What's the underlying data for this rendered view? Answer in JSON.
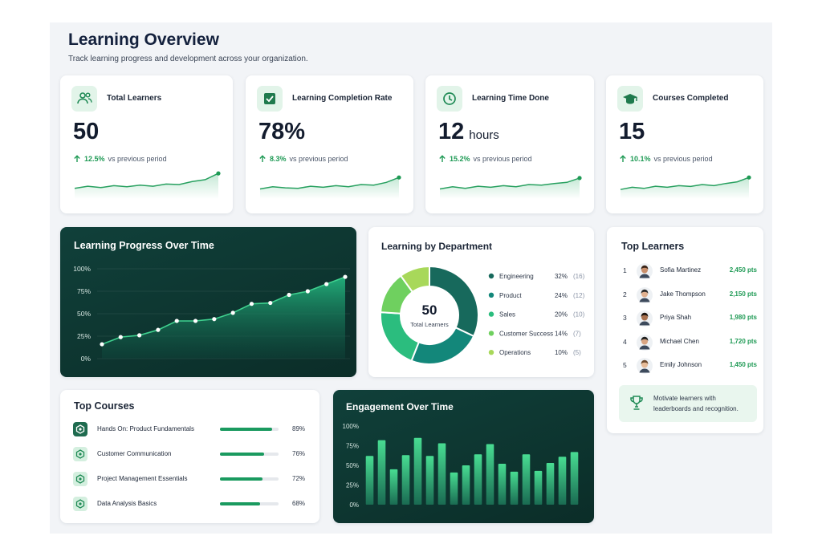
{
  "header": {
    "title": "Learning Overview",
    "subtitle": "Track learning progress and development across your organization."
  },
  "kpis": [
    {
      "title": "Total Learners",
      "value": "50",
      "change": "12.5%",
      "change_label": "vs previous period",
      "trend": [
        30,
        38,
        33,
        40,
        36,
        42,
        38,
        46,
        44,
        55,
        62,
        85
      ]
    },
    {
      "title": "Learning Completion Rate",
      "value": "78%",
      "change": "8.3%",
      "change_label": "vs previous period",
      "trend": [
        28,
        36,
        32,
        30,
        38,
        34,
        40,
        36,
        44,
        42,
        52,
        70
      ]
    },
    {
      "title": "Learning Time Done",
      "value": "12",
      "unit": "hours",
      "change": "15.2%",
      "change_label": "vs previous period",
      "trend": [
        28,
        36,
        30,
        38,
        34,
        40,
        36,
        44,
        42,
        48,
        52,
        68
      ]
    },
    {
      "title": "Courses Completed",
      "value": "15",
      "change": "10.1%",
      "change_label": "vs previous period",
      "trend": [
        26,
        34,
        30,
        38,
        34,
        40,
        37,
        44,
        40,
        48,
        54,
        70
      ]
    }
  ],
  "chart_data": [
    {
      "type": "line",
      "title": "Learning Progress Over Time",
      "color": "#3fd18f",
      "values": [
        16,
        24,
        26,
        32,
        42,
        42,
        44,
        51,
        61,
        62,
        71,
        75,
        83,
        91
      ],
      "ylim": [
        0,
        100
      ],
      "yticks": [
        {
          "value": 0,
          "label": "0%"
        },
        {
          "value": 25,
          "label": "25%"
        },
        {
          "value": 50,
          "label": "50%"
        },
        {
          "value": 75,
          "label": "75%"
        },
        {
          "value": 100,
          "label": "100%"
        }
      ],
      "grid": true
    },
    {
      "type": "pie",
      "title": "Learning by Department",
      "center_value": "50",
      "center_label": "Total Learners",
      "categories": [
        "Engineering",
        "Product",
        "Sales",
        "Customer Success",
        "Operations"
      ],
      "values": [
        32,
        24,
        20,
        14,
        10
      ],
      "value_labels": [
        "32%",
        "24%",
        "20%",
        "14%",
        "10%"
      ],
      "count_labels": [
        "(16)",
        "(12)",
        "(10)",
        "(7)",
        "(5)"
      ],
      "colors": [
        "#17695c",
        "#13877a",
        "#2bbd7e",
        "#6fd05f",
        "#a8d85a"
      ]
    },
    {
      "type": "bar",
      "title": "Engagement Over Time",
      "color": "#3fd18f",
      "values": [
        62,
        82,
        45,
        63,
        85,
        62,
        78,
        41,
        50,
        64,
        77,
        52,
        42,
        64,
        43,
        53,
        61,
        67
      ],
      "ylim": [
        0,
        100
      ],
      "yticks": [
        {
          "value": 0,
          "label": "0%"
        },
        {
          "value": 25,
          "label": "25%"
        },
        {
          "value": 50,
          "label": "50%"
        },
        {
          "value": 75,
          "label": "75%"
        },
        {
          "value": 100,
          "label": "100%"
        }
      ],
      "grid": false
    }
  ],
  "top_learners": {
    "title": "Top Learners",
    "rows": [
      {
        "rank": "1",
        "name": "Sofia Martinez",
        "points": "2,450 pts"
      },
      {
        "rank": "2",
        "name": "Jake Thompson",
        "points": "2,150 pts"
      },
      {
        "rank": "3",
        "name": "Priya Shah",
        "points": "1,980 pts"
      },
      {
        "rank": "4",
        "name": "Michael Chen",
        "points": "1,720 pts"
      },
      {
        "rank": "5",
        "name": "Emily Johnson",
        "points": "1,450 pts"
      }
    ],
    "note": "Motivate learners with leaderboards and recognition."
  },
  "top_courses": {
    "title": "Top Courses",
    "items": [
      {
        "name": "Hands On: Product Fundamentals",
        "progress": 89,
        "label": "89%"
      },
      {
        "name": "Customer Communication",
        "progress": 76,
        "label": "76%"
      },
      {
        "name": "Project Management Essentials",
        "progress": 72,
        "label": "72%"
      },
      {
        "name": "Data Analysis Basics",
        "progress": 68,
        "label": "68%"
      }
    ]
  }
}
